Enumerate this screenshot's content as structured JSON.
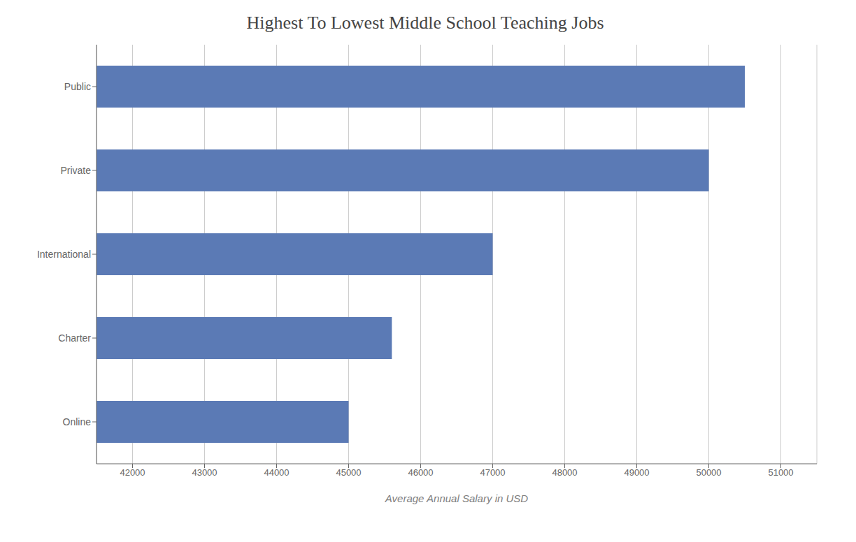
{
  "chart_data": {
    "type": "bar",
    "orientation": "horizontal",
    "title": "Highest To Lowest Middle School Teaching Jobs",
    "xlabel": "Average Annual Salary in USD",
    "categories": [
      "Public",
      "Private",
      "International",
      "Charter",
      "Online"
    ],
    "values": [
      50500,
      50000,
      47000,
      45600,
      45000
    ],
    "color": "#5b7ab5",
    "xlim": [
      41500,
      51500
    ],
    "xticks": [
      42000,
      43000,
      44000,
      45000,
      46000,
      47000,
      48000,
      49000,
      50000,
      51000
    ],
    "grid": true
  }
}
